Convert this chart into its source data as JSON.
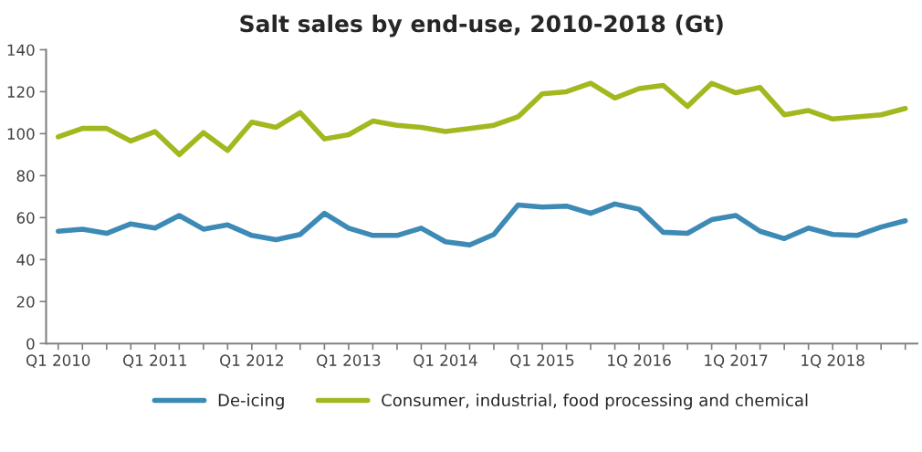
{
  "chart_data": {
    "type": "line",
    "title": "Salt sales by end-use, 2010-2018 (Gt)",
    "categories": [
      "Q1 2010",
      null,
      null,
      null,
      "Q1 2011",
      null,
      null,
      null,
      "Q1 2012",
      null,
      null,
      null,
      "Q1 2013",
      null,
      null,
      null,
      "Q1 2014",
      null,
      null,
      null,
      "Q1 2015",
      null,
      null,
      null,
      "1Q 2016",
      null,
      null,
      null,
      "1Q 2017",
      null,
      null,
      null,
      "1Q 2018",
      null,
      null,
      null
    ],
    "series": [
      {
        "name": "De-icing",
        "color": "#3c8ab5",
        "values": [
          53.5,
          54.5,
          52.5,
          57,
          55,
          61,
          54.5,
          56.5,
          51.5,
          49.5,
          52,
          62,
          55,
          51.5,
          51.5,
          55,
          48.5,
          47,
          52,
          66,
          65,
          65.5,
          62,
          66.5,
          64,
          53,
          52.5,
          59,
          61,
          53.5,
          50,
          55,
          52,
          51.5,
          55.5,
          58.5
        ]
      },
      {
        "name": "Consumer, industrial, food processing and chemical",
        "color": "#a3b81f",
        "values": [
          98.5,
          102.5,
          102.5,
          96.5,
          101,
          90,
          100.5,
          92,
          105.5,
          103,
          110,
          97.5,
          99.5,
          106,
          104,
          103,
          101,
          102.5,
          104,
          108,
          119,
          120,
          124,
          117,
          121.5,
          123,
          113,
          124,
          119.5,
          122,
          109,
          111,
          107,
          108,
          109,
          112
        ]
      }
    ],
    "ylim": [
      0,
      140
    ],
    "yticks": [
      0,
      20,
      40,
      60,
      80,
      100,
      120,
      140
    ],
    "grid": false,
    "legend": "bottom",
    "marker": "none",
    "line_style": "solid"
  }
}
